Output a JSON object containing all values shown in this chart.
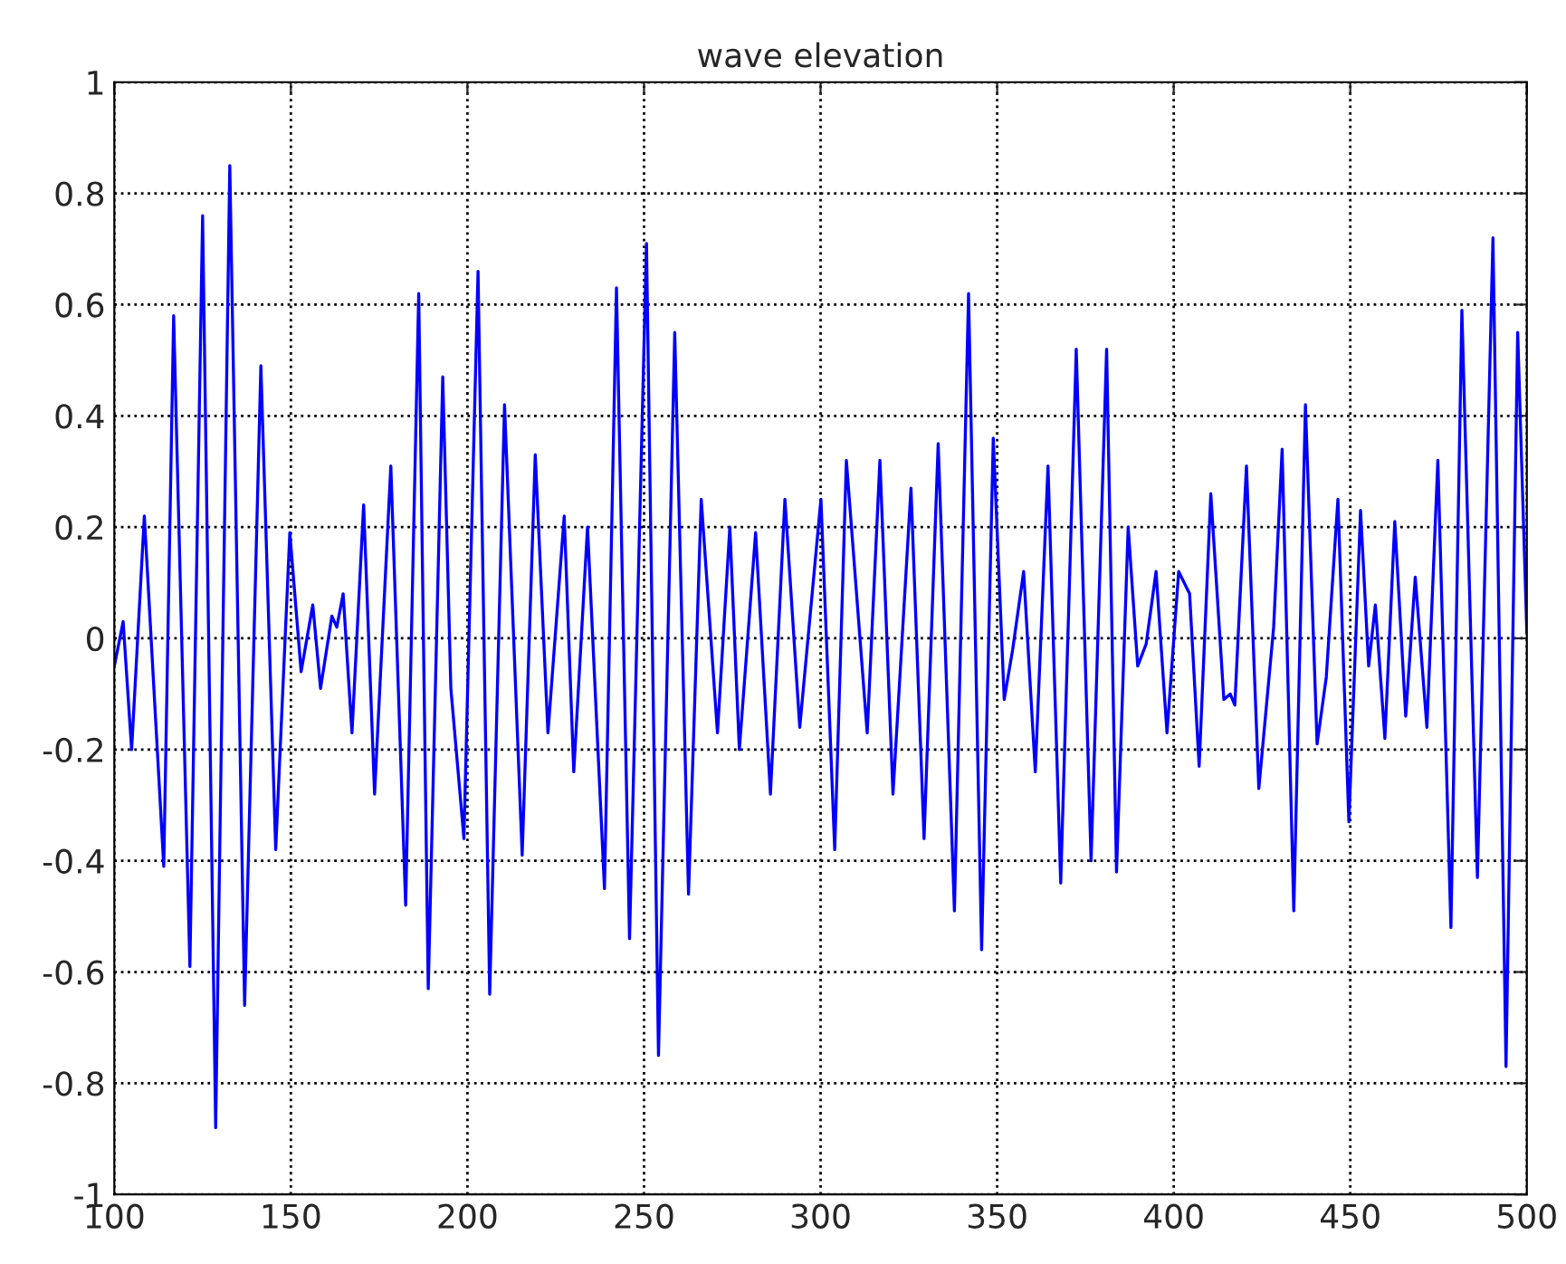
{
  "chart_data": {
    "type": "line",
    "title": "wave elevation",
    "xlim": [
      100,
      500
    ],
    "xticks": [
      100,
      150,
      200,
      250,
      300,
      350,
      400,
      450,
      500
    ],
    "ylim": [
      -1,
      1
    ],
    "yticks": [
      -1,
      -0.8,
      -0.6,
      -0.4,
      -0.2,
      0,
      0.2,
      0.4,
      0.6,
      0.8,
      1
    ],
    "grid": true,
    "marker": "none",
    "line_style": "solid",
    "series": [
      {
        "color": "#0000ff",
        "x": [
          100,
          102.5,
          104.9,
          108.5,
          114.0,
          116.8,
          121.4,
          125.0,
          128.7,
          132.7,
          136.9,
          141.5,
          145.7,
          149.7,
          152.9,
          156.2,
          158.4,
          161.6,
          163,
          164.8,
          167.3,
          170.6,
          173.7,
          178.3,
          182.5,
          186.2,
          188.9,
          193,
          195.3,
          199,
          203,
          206.3,
          210.5,
          215.5,
          219.2,
          222.8,
          227.4,
          230.1,
          234,
          238.8,
          242.2,
          245.9,
          250.7,
          254.1,
          258.7,
          262.6,
          266.2,
          270.8,
          274.3,
          277,
          281.6,
          285.8,
          289.9,
          294.1,
          300.1,
          304,
          307.3,
          313.2,
          316.8,
          320.5,
          325.6,
          329.3,
          333.3,
          337.9,
          341.9,
          345.6,
          348.9,
          352,
          354.4,
          357.5,
          360.8,
          364.4,
          368,
          372.4,
          376.6,
          381,
          383.8,
          387.1,
          389.8,
          392.2,
          395,
          398.1,
          401.4,
          404.5,
          407.2,
          410.5,
          414.2,
          416,
          417.3,
          420.6,
          424.1,
          428.3,
          430.7,
          434,
          437.3,
          440.6,
          443.2,
          446.5,
          449.6,
          452.9,
          455.2,
          457.1,
          459.8,
          462.6,
          465.7,
          468.4,
          471.7,
          474.8,
          478.5,
          481.6,
          486,
          490.4,
          494.1,
          497.4,
          500
        ],
        "values": [
          -0.05,
          0.03,
          -0.2,
          0.22,
          -0.41,
          0.58,
          -0.59,
          0.76,
          -0.88,
          0.85,
          -0.66,
          0.49,
          -0.38,
          0.19,
          -0.06,
          0.06,
          -0.09,
          0.04,
          0.02,
          0.08,
          -0.17,
          0.24,
          -0.28,
          0.31,
          -0.48,
          0.62,
          -0.63,
          0.47,
          -0.09,
          -0.36,
          0.66,
          -0.64,
          0.42,
          -0.39,
          0.33,
          -0.17,
          0.22,
          -0.24,
          0.2,
          -0.45,
          0.63,
          -0.54,
          0.71,
          -0.75,
          0.55,
          -0.46,
          0.25,
          -0.17,
          0.2,
          -0.2,
          0.19,
          -0.28,
          0.25,
          -0.16,
          0.25,
          -0.38,
          0.32,
          -0.17,
          0.32,
          -0.28,
          0.27,
          -0.36,
          0.35,
          -0.49,
          0.62,
          -0.56,
          0.36,
          -0.11,
          -0.02,
          0.12,
          -0.24,
          0.31,
          -0.44,
          0.52,
          -0.4,
          0.52,
          -0.42,
          0.2,
          -0.05,
          -0.01,
          0.12,
          -0.17,
          0.12,
          0.08,
          -0.23,
          0.26,
          -0.11,
          -0.1,
          -0.12,
          0.31,
          -0.27,
          0.02,
          0.34,
          -0.49,
          0.42,
          -0.19,
          -0.07,
          0.25,
          -0.33,
          0.23,
          -0.05,
          0.06,
          -0.18,
          0.21,
          -0.14,
          0.11,
          -0.16,
          0.32,
          -0.52,
          0.59,
          -0.43,
          0.72,
          -0.77,
          0.55,
          0.01
        ]
      }
    ]
  }
}
